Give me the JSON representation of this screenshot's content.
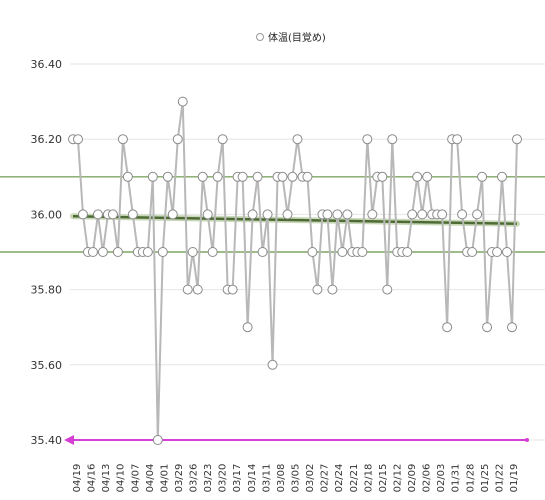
{
  "chart_data": {
    "type": "line",
    "x_labels": [
      "04/19",
      "04/16",
      "04/13",
      "04/10",
      "04/07",
      "04/04",
      "04/01",
      "03/29",
      "03/26",
      "03/23",
      "03/20",
      "03/17",
      "03/14",
      "03/11",
      "03/08",
      "03/05",
      "03/02",
      "02/27",
      "02/24",
      "02/21",
      "02/18",
      "02/15",
      "02/12",
      "02/09",
      "02/06",
      "02/03",
      "01/31",
      "01/28",
      "01/25",
      "01/22",
      "01/19"
    ],
    "series": [
      {
        "name": "体温(目覚め)",
        "color": "#b8b8b8",
        "values": [
          36.2,
          36.2,
          36.0,
          35.9,
          35.9,
          36.0,
          35.9,
          36.0,
          36.0,
          35.9,
          36.2,
          36.1,
          36.0,
          35.9,
          35.9,
          35.9,
          36.1,
          35.4,
          35.9,
          36.1,
          36.0,
          36.2,
          36.3,
          35.8,
          35.9,
          35.8,
          36.1,
          36.0,
          35.9,
          36.1,
          36.2,
          35.8,
          35.8,
          36.1,
          36.1,
          35.7,
          36.0,
          36.1,
          35.9,
          36.0,
          35.6,
          36.1,
          36.1,
          36.0,
          36.1,
          36.2,
          36.1,
          36.1,
          35.9,
          35.8,
          36.0,
          36.0,
          35.8,
          36.0,
          35.9,
          36.0,
          35.9,
          35.9,
          35.9,
          36.2,
          36.0,
          36.1,
          36.1,
          35.8,
          36.2,
          35.9,
          35.9,
          35.9,
          36.0,
          36.1,
          36.0,
          36.1,
          36.0,
          36.0,
          36.0,
          35.7,
          36.2,
          36.2,
          36.0,
          35.9,
          35.9,
          36.0,
          36.1,
          35.7,
          35.9,
          35.9,
          36.1,
          35.9,
          35.7,
          36.2
        ]
      }
    ],
    "trend": {
      "start": 35.995,
      "end": 35.975,
      "color": "#4e6b35"
    },
    "reference_lines": [
      {
        "value": 36.1,
        "color": "#7fa563"
      },
      {
        "value": 35.9,
        "color": "#7fa563"
      }
    ],
    "baseline": {
      "value": 35.4,
      "color": "#d63fd6"
    },
    "ylim": [
      35.4,
      36.4
    ],
    "yticks": [
      "36.40",
      "36.20",
      "36.00",
      "35.80",
      "35.60",
      "35.40"
    ],
    "ytick_values": [
      36.4,
      36.2,
      36.0,
      35.8,
      35.6,
      35.4
    ],
    "grid": true,
    "legend_position": "top-center",
    "marker": "open-circle"
  }
}
